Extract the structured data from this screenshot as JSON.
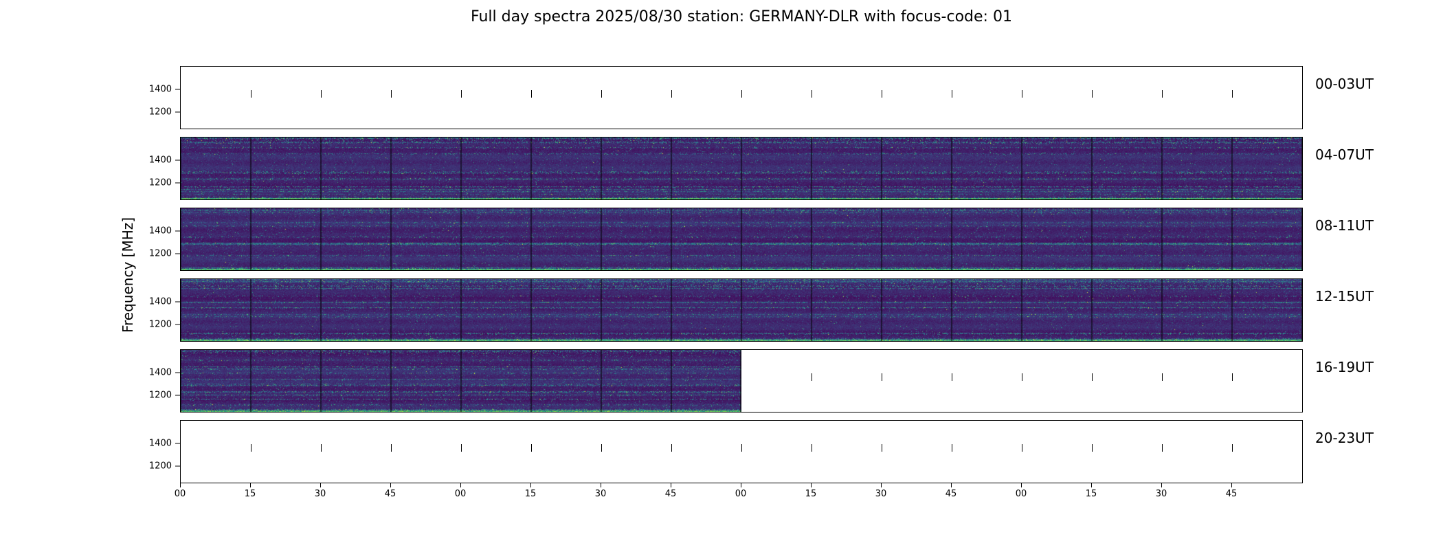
{
  "chart_data": {
    "type": "heatmap",
    "title": "Full day spectra 2025/08/30 station: GERMANY-DLR with focus-code: 01",
    "date": "2025/08/30",
    "station": "GERMANY-DLR",
    "focus_code": "01",
    "ylabel": "Frequency [MHz]",
    "y_ticks": [
      1400,
      1200
    ],
    "y_tick_labels": [
      "1400",
      "1200"
    ],
    "ylim": [
      1080,
      1620
    ],
    "x_tick_labels": [
      "00",
      "15",
      "30",
      "45",
      "00",
      "15",
      "30",
      "45",
      "00",
      "15",
      "30",
      "45",
      "00",
      "15",
      "30",
      "45"
    ],
    "x_axis_unit": "minutes within each 4-hour block",
    "segments_per_panel": 16,
    "segment_duration_min": 15,
    "grid": false,
    "legend": "none",
    "panels": [
      {
        "label": "00-03UT",
        "has_data": false,
        "coverage": 0
      },
      {
        "label": "04-07UT",
        "has_data": true,
        "coverage": 1
      },
      {
        "label": "08-11UT",
        "has_data": true,
        "coverage": 1
      },
      {
        "label": "12-15UT",
        "has_data": true,
        "coverage": 1
      },
      {
        "label": "16-19UT",
        "has_data": true,
        "coverage": 0.5
      },
      {
        "label": "20-23UT",
        "has_data": false,
        "coverage": 0
      }
    ],
    "colors": {
      "background": "#ffffff",
      "axis": "#000000",
      "spectrogram_base": "#40286e",
      "spectrogram_speckle": "#21918c",
      "spectrogram_bright": "#5ec962"
    }
  }
}
